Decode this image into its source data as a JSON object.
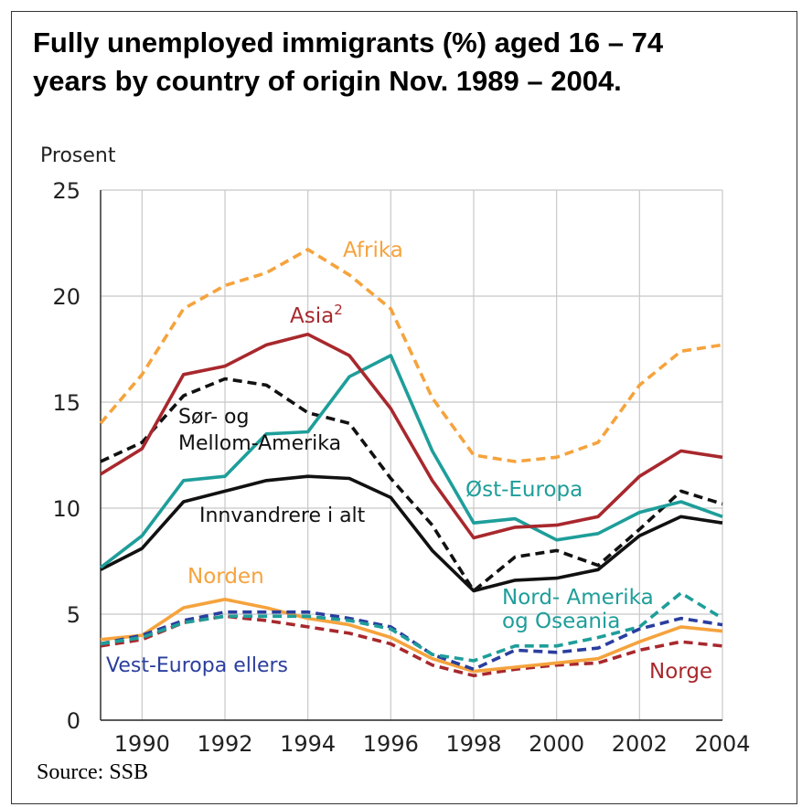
{
  "title_line1": "Fully unemployed immigrants  (%) aged 16 – 74",
  "title_line2": "years by country of origin Nov. 1989 – 2004.",
  "source": "Source: SSB",
  "chart_data": {
    "type": "line",
    "ylabel": "Prosent",
    "xlabel": "",
    "ylim": [
      0,
      25
    ],
    "xlim": [
      1989,
      2004
    ],
    "yticks": [
      0,
      5,
      10,
      15,
      20,
      25
    ],
    "xticks": [
      1990,
      1992,
      1994,
      1996,
      1998,
      2000,
      2002,
      2004
    ],
    "grid": true,
    "x": [
      1989,
      1990,
      1991,
      1992,
      1993,
      1994,
      1995,
      1996,
      1997,
      1998,
      1999,
      2000,
      2001,
      2002,
      2003,
      2004
    ],
    "series": [
      {
        "name": "Afrika",
        "color": "#f5a33d",
        "dashed": true,
        "values": [
          14.0,
          16.3,
          19.4,
          20.5,
          21.1,
          22.2,
          21.0,
          19.4,
          15.2,
          12.5,
          12.2,
          12.4,
          13.1,
          15.8,
          17.4,
          17.7
        ]
      },
      {
        "name": "Asia",
        "name_sup": "2",
        "color": "#a8282d",
        "dashed": false,
        "values": [
          11.6,
          12.8,
          16.3,
          16.7,
          17.7,
          18.2,
          17.2,
          14.7,
          11.3,
          8.6,
          9.1,
          9.2,
          9.6,
          11.5,
          12.7,
          12.4
        ]
      },
      {
        "name": "Øst-Europa",
        "color": "#1e9e9a",
        "dashed": false,
        "values": [
          7.2,
          8.7,
          11.3,
          11.5,
          13.5,
          13.6,
          16.2,
          17.2,
          12.7,
          9.3,
          9.5,
          8.5,
          8.8,
          9.8,
          10.3,
          9.6
        ]
      },
      {
        "name": "Sør- og Mellom-Amerika",
        "color": "#111111",
        "dashed": true,
        "values": [
          12.2,
          13.1,
          15.3,
          16.1,
          15.8,
          14.5,
          14.0,
          11.4,
          9.2,
          6.1,
          7.7,
          8.0,
          7.3,
          9.0,
          10.8,
          10.2
        ]
      },
      {
        "name": "Innvandrere i alt",
        "color": "#111111",
        "dashed": false,
        "values": [
          7.1,
          8.1,
          10.3,
          10.8,
          11.3,
          11.5,
          11.4,
          10.5,
          8.0,
          6.1,
          6.6,
          6.7,
          7.1,
          8.7,
          9.6,
          9.3
        ]
      },
      {
        "name": "Nord-Amerika og Oseania",
        "color": "#1e9e9a",
        "dashed": true,
        "values": [
          3.6,
          3.9,
          4.6,
          4.9,
          4.9,
          4.9,
          4.7,
          4.3,
          3.1,
          2.8,
          3.5,
          3.5,
          3.9,
          4.4,
          6.0,
          4.8
        ]
      },
      {
        "name": "Norden",
        "color": "#f5a33d",
        "dashed": false,
        "values": [
          3.8,
          4.0,
          5.3,
          5.7,
          5.3,
          4.8,
          4.5,
          3.9,
          2.9,
          2.3,
          2.5,
          2.7,
          2.9,
          3.7,
          4.4,
          4.2
        ]
      },
      {
        "name": "Vest-Europa ellers",
        "color": "#2a3e9e",
        "dashed": true,
        "values": [
          3.6,
          4.0,
          4.7,
          5.1,
          5.1,
          5.1,
          4.8,
          4.4,
          3.1,
          2.4,
          3.3,
          3.2,
          3.4,
          4.3,
          4.8,
          4.5
        ]
      },
      {
        "name": "Norge",
        "color": "#a8282d",
        "dashed": true,
        "values": [
          3.5,
          3.8,
          4.6,
          4.9,
          4.7,
          4.4,
          4.1,
          3.6,
          2.6,
          2.1,
          2.4,
          2.6,
          2.7,
          3.3,
          3.7,
          3.5
        ]
      }
    ],
    "series_labels": [
      {
        "text": "Afrika",
        "color": "#f5a33d"
      },
      {
        "text": "Asia",
        "sup": "2",
        "color": "#a8282d"
      },
      {
        "text": "Sør- og",
        "color": "#111111"
      },
      {
        "text": "Mellom-Amerika",
        "color": "#111111"
      },
      {
        "text": "Øst-Europa",
        "color": "#1e9e9a"
      },
      {
        "text": "Innvandrere i alt",
        "color": "#111111"
      },
      {
        "text": "Norden",
        "color": "#f5a33d"
      },
      {
        "text": "Nord- Amerika",
        "color": "#1e9e9a"
      },
      {
        "text": "og Oseania",
        "color": "#1e9e9a"
      },
      {
        "text": "Vest-Europa ellers",
        "color": "#2a3e9e"
      },
      {
        "text": "Norge",
        "color": "#a8282d"
      }
    ]
  }
}
